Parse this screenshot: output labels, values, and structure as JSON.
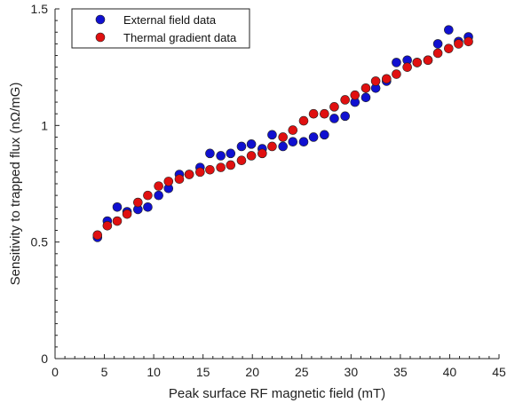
{
  "chart_data": {
    "type": "scatter",
    "xlabel": "Peak surface RF magnetic field (mT)",
    "ylabel": "Sensitivity to trapped flux (nΩ/mG)",
    "xlim": [
      0,
      45
    ],
    "ylim": [
      0,
      1.5
    ],
    "xticks": [
      0,
      5,
      10,
      15,
      20,
      25,
      30,
      35,
      40,
      45
    ],
    "yticks": [
      0,
      0.5,
      1,
      1.5
    ],
    "xtick_labels": [
      "0",
      "5",
      "10",
      "15",
      "20",
      "25",
      "30",
      "35",
      "40",
      "45"
    ],
    "ytick_labels": [
      "0",
      "0.5",
      "1",
      "1.5"
    ],
    "grid": false,
    "legend_position": "top-left",
    "series": [
      {
        "name": "External field data",
        "color": "#1010d0",
        "x": [
          4.3,
          5.3,
          6.3,
          7.3,
          8.4,
          9.4,
          10.5,
          11.5,
          12.6,
          13.6,
          14.7,
          15.7,
          16.8,
          17.8,
          18.9,
          19.9,
          21.0,
          22.0,
          23.1,
          24.1,
          25.2,
          26.2,
          27.3,
          28.3,
          29.4,
          30.4,
          31.5,
          32.5,
          33.6,
          34.6,
          35.7,
          36.7,
          37.8,
          38.8,
          39.9,
          40.9,
          41.9
        ],
        "y": [
          0.52,
          0.59,
          0.65,
          0.63,
          0.64,
          0.65,
          0.7,
          0.73,
          0.79,
          0.79,
          0.82,
          0.88,
          0.87,
          0.88,
          0.91,
          0.92,
          0.9,
          0.96,
          0.91,
          0.93,
          0.93,
          0.95,
          0.96,
          1.03,
          1.04,
          1.1,
          1.12,
          1.16,
          1.19,
          1.27,
          1.28,
          1.27,
          1.28,
          1.35,
          1.41,
          1.36,
          1.38
        ]
      },
      {
        "name": "Thermal gradient data",
        "color": "#e01010",
        "x": [
          4.3,
          5.3,
          6.3,
          7.3,
          8.4,
          9.4,
          10.5,
          11.5,
          12.6,
          13.6,
          14.7,
          15.7,
          16.8,
          17.8,
          18.9,
          19.9,
          21.0,
          22.0,
          23.1,
          24.1,
          25.2,
          26.2,
          27.3,
          28.3,
          29.4,
          30.4,
          31.5,
          32.5,
          33.6,
          34.6,
          35.7,
          36.7,
          37.8,
          38.8,
          39.9,
          40.9,
          41.9
        ],
        "y": [
          0.53,
          0.57,
          0.59,
          0.62,
          0.67,
          0.7,
          0.74,
          0.76,
          0.77,
          0.79,
          0.8,
          0.81,
          0.82,
          0.83,
          0.85,
          0.87,
          0.88,
          0.91,
          0.95,
          0.98,
          1.02,
          1.05,
          1.05,
          1.08,
          1.11,
          1.13,
          1.16,
          1.19,
          1.2,
          1.22,
          1.25,
          1.27,
          1.28,
          1.31,
          1.33,
          1.35,
          1.36
        ]
      }
    ]
  }
}
